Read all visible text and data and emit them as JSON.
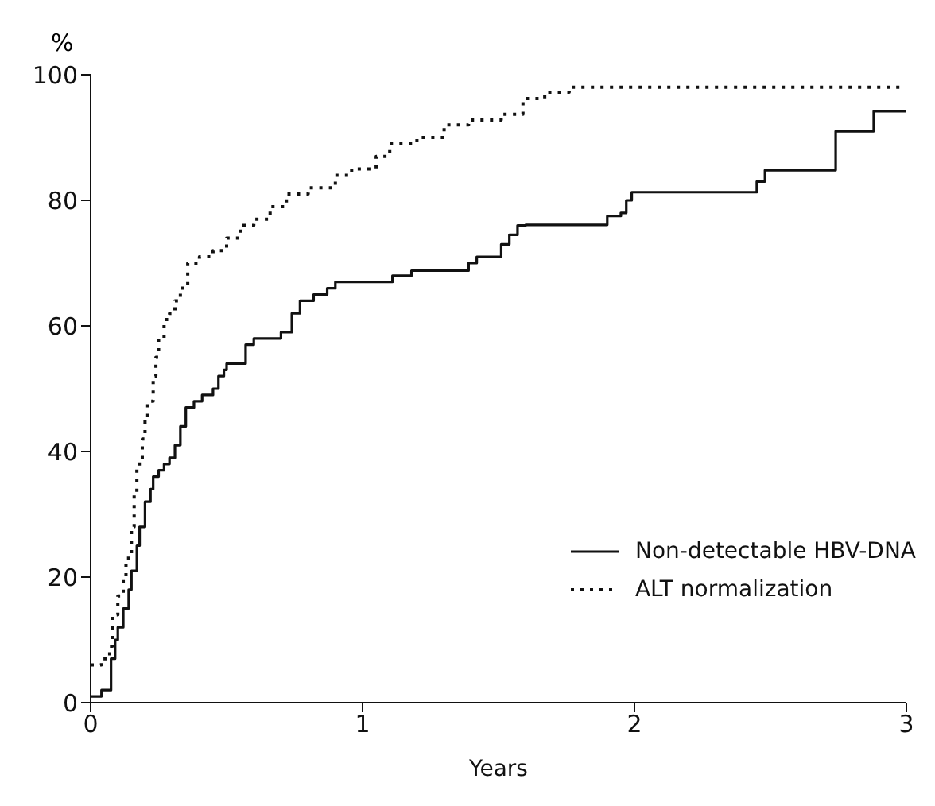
{
  "chart_data": {
    "type": "step",
    "xlabel": "Years",
    "ylabel": "%",
    "xlim": [
      0,
      3
    ],
    "xticks": [
      0,
      1,
      2,
      3
    ],
    "ylim": [
      0,
      100
    ],
    "yticks": [
      0,
      20,
      40,
      60,
      80,
      100
    ],
    "legend": "bottom right",
    "marker": "none",
    "series": [
      {
        "name": "Non-detectable HBV-DNA",
        "color": "#111111",
        "line_style": "solid",
        "x": [
          0,
          0.04,
          0.075,
          0.09,
          0.1,
          0.12,
          0.14,
          0.15,
          0.17,
          0.18,
          0.2,
          0.22,
          0.23,
          0.25,
          0.27,
          0.29,
          0.31,
          0.33,
          0.35,
          0.38,
          0.41,
          0.45,
          0.47,
          0.49,
          0.5,
          0.57,
          0.6,
          0.7,
          0.74,
          0.77,
          0.82,
          0.87,
          0.9,
          1.11,
          1.18,
          1.39,
          1.42,
          1.51,
          1.54,
          1.57,
          1.6,
          1.9,
          1.95,
          1.97,
          1.99,
          2.45,
          2.48,
          2.74,
          2.88,
          3.0
        ],
        "values": [
          1,
          2,
          7,
          10,
          12,
          15,
          18,
          21,
          25,
          28,
          32,
          34,
          36,
          37,
          38,
          39,
          41,
          44,
          47,
          48,
          49,
          50,
          52,
          53,
          54,
          57,
          58,
          59,
          62,
          64,
          65,
          66,
          67,
          68,
          68.8,
          70,
          71,
          73,
          74.5,
          76,
          76.1,
          77.5,
          78,
          80,
          81.3,
          83,
          84.8,
          91,
          94.2,
          94.2
        ]
      },
      {
        "name": "ALT normalization",
        "color": "#111111",
        "line_style": "dotted",
        "x": [
          0,
          0.04,
          0.07,
          0.08,
          0.1,
          0.12,
          0.13,
          0.15,
          0.16,
          0.17,
          0.19,
          0.2,
          0.21,
          0.23,
          0.24,
          0.25,
          0.27,
          0.29,
          0.31,
          0.33,
          0.357,
          0.4,
          0.45,
          0.5,
          0.55,
          0.6,
          0.66,
          0.72,
          0.8,
          0.9,
          0.96,
          1.05,
          1.1,
          1.2,
          1.3,
          1.39,
          1.51,
          1.59,
          1.67,
          1.76,
          3.0
        ],
        "values": [
          6,
          7,
          9,
          14,
          17,
          20,
          23,
          28,
          33,
          38,
          42,
          45,
          48,
          52,
          55,
          58,
          61,
          62,
          64,
          66,
          70,
          71,
          72,
          74,
          76,
          77,
          79,
          81,
          82,
          84,
          85,
          87,
          89,
          90,
          92,
          92.8,
          93.7,
          96.2,
          97.2,
          98,
          98
        ]
      }
    ]
  }
}
